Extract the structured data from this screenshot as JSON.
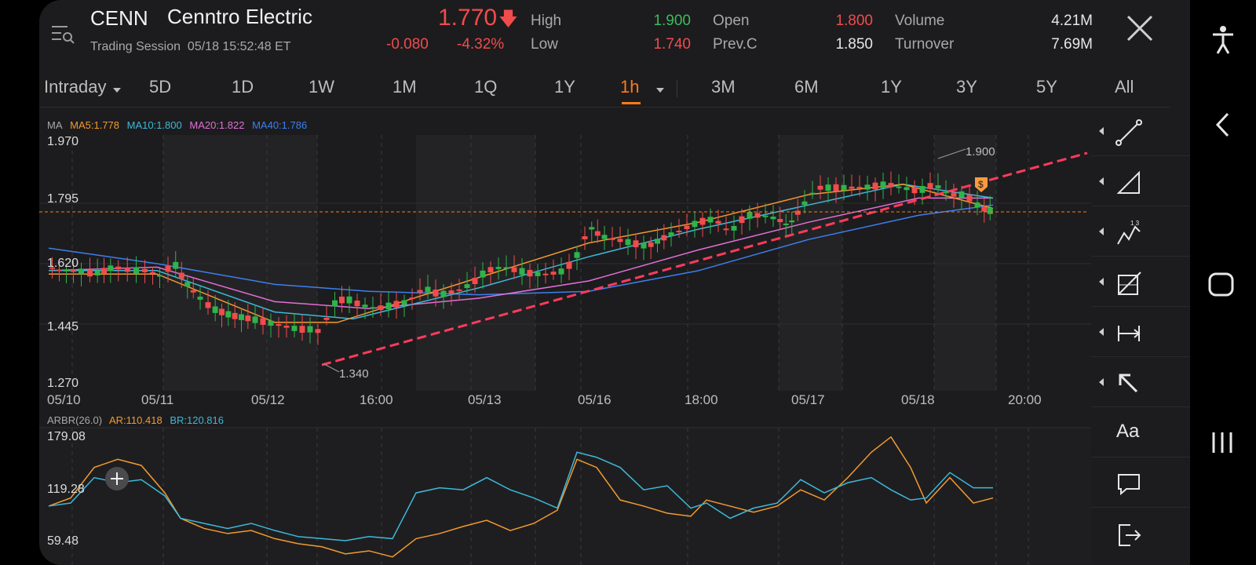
{
  "header": {
    "ticker": "CENN",
    "company": "Cenntro Electric",
    "session_label": "Trading Session",
    "session_time": "05/18 15:52:48 ET",
    "price": "1.770",
    "change": "-0.080",
    "change_pct": "-4.32%",
    "stats": [
      {
        "label": "High",
        "value": "1.900",
        "color": "#3dbb5a"
      },
      {
        "label": "Low",
        "value": "1.740",
        "color": "#f24b4b"
      },
      {
        "label": "Open",
        "value": "1.800",
        "color": "#f24b4b"
      },
      {
        "label": "Prev.C",
        "value": "1.850",
        "color": "#e6e6e6"
      },
      {
        "label": "Volume",
        "value": "4.21M",
        "color": "#e6e6e6"
      },
      {
        "label": "Turnover",
        "value": "7.69M",
        "color": "#e6e6e6"
      }
    ]
  },
  "tabs": [
    {
      "label": "Intraday",
      "active": false
    },
    {
      "label": "5D",
      "active": false
    },
    {
      "label": "1D",
      "active": false
    },
    {
      "label": "1W",
      "active": false
    },
    {
      "label": "1M",
      "active": false
    },
    {
      "label": "1Q",
      "active": false
    },
    {
      "label": "1Y",
      "active": false
    },
    {
      "label": "1h",
      "active": true
    },
    {
      "label": "3M",
      "active": false
    },
    {
      "label": "6M",
      "active": false
    },
    {
      "label": "1Y",
      "active": false
    },
    {
      "label": "3Y",
      "active": false
    },
    {
      "label": "5Y",
      "active": false
    },
    {
      "label": "All",
      "active": false
    }
  ],
  "indicators": {
    "ma_title": "MA",
    "ma": [
      {
        "label": "MA5:1.778",
        "color": "#f39a2f"
      },
      {
        "label": "MA10:1.800",
        "color": "#3db9d9"
      },
      {
        "label": "MA20:1.822",
        "color": "#e36fd6"
      },
      {
        "label": "MA40:1.786",
        "color": "#3d7ff0"
      }
    ],
    "arbr_title": "ARBR(26.0)",
    "arbr": [
      {
        "label": "AR:110.418",
        "color": "#f39a2f"
      },
      {
        "label": "BR:120.816",
        "color": "#3db9d9"
      }
    ]
  },
  "chart_data": [
    {
      "type": "candlestick",
      "y_ticks": [
        "1.970",
        "1.795",
        "1.620",
        "1.445",
        "1.270"
      ],
      "ylim": [
        1.27,
        1.97
      ],
      "x_labels": [
        "05/10",
        "05/11",
        "05/12",
        "16:00",
        "05/13",
        "05/16",
        "18:00",
        "05/17",
        "05/18",
        "20:00"
      ],
      "annotations": {
        "max": "1.900",
        "min": "1.340"
      },
      "last_price_line": 1.77,
      "grid": true
    },
    {
      "type": "line",
      "y_ticks": [
        "179.08",
        "119.28",
        "59.48"
      ],
      "ylim": [
        59.48,
        179.08
      ],
      "series": [
        {
          "name": "AR",
          "color": "#f39a2f"
        },
        {
          "name": "BR",
          "color": "#3db9d9"
        }
      ]
    }
  ],
  "colors": {
    "up": "#2fb34a",
    "down": "#f24b4b",
    "accent": "#ff7a1a",
    "trend": "#ff3b5c"
  },
  "toolbar": [
    "line-tool-icon",
    "triangle-tool-icon",
    "wave-tool-icon",
    "fib-tool-icon",
    "measure-tool-icon",
    "arrow-tool-icon",
    "text-tool",
    "comment-icon",
    "exit-icon"
  ],
  "toolbar_text": {
    "text_tool": "Aa"
  }
}
